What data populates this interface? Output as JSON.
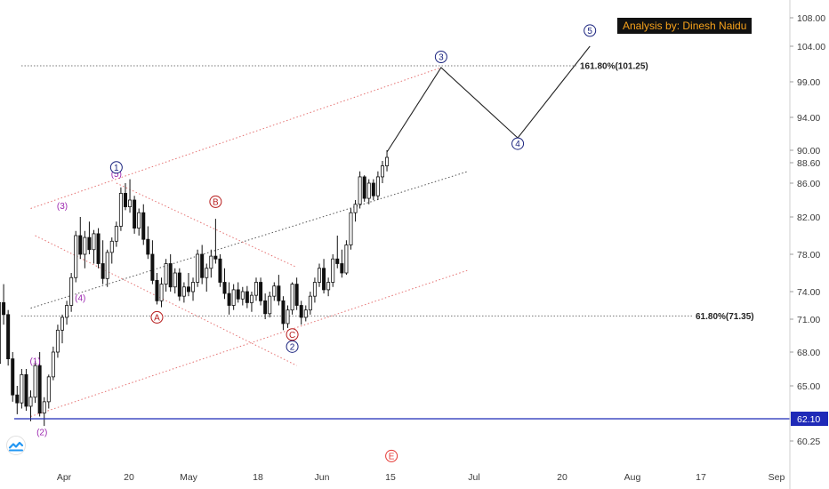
{
  "credit": "Analysis by: Dinesh Naidu",
  "chart_data": {
    "type": "candlestick",
    "x_ticks": [
      "Apr",
      "20",
      "May",
      "18",
      "Jun",
      "15",
      "Jul",
      "20",
      "Aug",
      "17",
      "Sep"
    ],
    "y_ticks": [
      "108.00",
      "104.00",
      "99.00",
      "94.00",
      "90.00",
      "88.60",
      "86.00",
      "82.00",
      "78.00",
      "74.00",
      "71.00",
      "68.00",
      "65.00",
      "62.10",
      "60.25"
    ],
    "current_price": "62.10",
    "fib_levels": [
      {
        "label": "161.80%(101.25)",
        "value": 101.25
      },
      {
        "label": "61.80%(71.35)",
        "value": 71.35
      }
    ],
    "wave_labels": [
      {
        "text": "(1)",
        "day": -6,
        "price": 67.2,
        "color": "#9c27b0",
        "circle": false
      },
      {
        "text": "(2)",
        "day": -4.5,
        "price": 61.0,
        "color": "#9c27b0",
        "circle": false
      },
      {
        "text": "(3)",
        "day": 0,
        "price": 83.3,
        "color": "#9c27b0",
        "circle": false
      },
      {
        "text": "(4)",
        "day": 4,
        "price": 73.3,
        "color": "#9c27b0",
        "circle": false
      },
      {
        "text": "(5)",
        "day": 12,
        "price": 87.2,
        "color": "#9c27b0",
        "circle": false
      },
      {
        "text": "1",
        "day": 12,
        "price": 88.0,
        "color": "#1a237e",
        "circle": true
      },
      {
        "text": "A",
        "day": 21,
        "price": 71.2,
        "color": "#b71c1c",
        "circle": true
      },
      {
        "text": "B",
        "day": 34,
        "price": 83.8,
        "color": "#b71c1c",
        "circle": true
      },
      {
        "text": "C",
        "day": 51,
        "price": 69.6,
        "color": "#b71c1c",
        "circle": true
      },
      {
        "text": "2",
        "day": 51,
        "price": 68.5,
        "color": "#1a237e",
        "circle": true
      },
      {
        "text": "3",
        "day": 84,
        "price": 102.5,
        "color": "#1a237e",
        "circle": true
      },
      {
        "text": "4",
        "day": 101,
        "price": 90.8,
        "color": "#1a237e",
        "circle": true
      },
      {
        "text": "5",
        "day": 117,
        "price": 106.2,
        "color": "#1a237e",
        "circle": true
      },
      {
        "text": "E",
        "day": 73,
        "price": 59.0,
        "color": "#e53935",
        "circle": true
      }
    ],
    "projection": [
      {
        "day": 72,
        "price": 89.8
      },
      {
        "day": 84,
        "price": 101.0
      },
      {
        "day": 101,
        "price": 91.5
      },
      {
        "day": 117,
        "price": 104.0
      }
    ],
    "channels": [
      {
        "style": "red-dotted",
        "points": [
          [
            -7,
            83.0
          ],
          [
            84,
            101.0
          ]
        ]
      },
      {
        "style": "red-dotted",
        "points": [
          [
            -7,
            62.3
          ],
          [
            90,
            76.3
          ]
        ]
      },
      {
        "style": "dark-dotted",
        "points": [
          [
            -7,
            72.2
          ],
          [
            90,
            87.5
          ]
        ]
      },
      {
        "style": "red-dotted",
        "points": [
          [
            -6,
            80.0
          ],
          [
            52,
            66.8
          ]
        ]
      },
      {
        "style": "red-dotted",
        "points": [
          [
            12,
            86.0
          ],
          [
            52,
            76.6
          ]
        ]
      }
    ],
    "series": [
      {
        "type": "ohlc",
        "columns": [
          "day",
          "open",
          "high",
          "low",
          "close"
        ],
        "values": [
          [
            -17,
            75.5,
            76.2,
            72.0,
            72.8
          ],
          [
            -16,
            72.8,
            73.5,
            69.5,
            70.2
          ],
          [
            -15,
            70.2,
            71.5,
            66.5,
            67.0
          ],
          [
            -14,
            67.0,
            73.5,
            66.0,
            72.8
          ],
          [
            -13,
            72.8,
            74.8,
            70.5,
            71.5
          ],
          [
            -12,
            71.5,
            72.0,
            66.8,
            67.4
          ],
          [
            -11,
            67.4,
            68.0,
            63.6,
            64.2
          ],
          [
            -10,
            64.2,
            65.0,
            62.5,
            63.5
          ],
          [
            -9,
            63.5,
            66.5,
            63.0,
            66.0
          ],
          [
            -8,
            66.0,
            66.5,
            62.8,
            63.2
          ],
          [
            -7,
            63.2,
            64.6,
            61.9,
            64.0
          ],
          [
            -6,
            64.0,
            67.2,
            63.5,
            66.8
          ],
          [
            -5,
            66.8,
            68.0,
            62.3,
            62.6
          ],
          [
            -4,
            62.6,
            64.0,
            61.5,
            63.6
          ],
          [
            -3,
            63.6,
            66.0,
            63.0,
            65.8
          ],
          [
            -2,
            65.8,
            68.5,
            65.5,
            68.0
          ],
          [
            -1,
            68.0,
            70.5,
            67.5,
            70.0
          ],
          [
            0,
            70.0,
            71.5,
            68.8,
            71.2
          ],
          [
            1,
            71.2,
            73.0,
            70.5,
            72.5
          ],
          [
            2,
            72.5,
            76.0,
            71.8,
            75.5
          ],
          [
            3,
            75.5,
            80.5,
            75.0,
            80.0
          ],
          [
            4,
            80.0,
            82.0,
            77.5,
            78.0
          ],
          [
            5,
            78.0,
            80.5,
            76.5,
            79.8
          ],
          [
            6,
            79.8,
            81.5,
            78.0,
            78.5
          ],
          [
            7,
            78.5,
            80.6,
            77.0,
            80.2
          ],
          [
            8,
            80.2,
            80.8,
            76.5,
            77.0
          ],
          [
            9,
            77.0,
            79.5,
            74.8,
            75.4
          ],
          [
            10,
            75.4,
            78.5,
            74.5,
            78.2
          ],
          [
            11,
            78.2,
            79.8,
            77.0,
            79.4
          ],
          [
            12,
            79.4,
            81.5,
            78.8,
            81.0
          ],
          [
            13,
            81.0,
            85.5,
            80.5,
            84.8
          ],
          [
            14,
            84.8,
            86.0,
            82.8,
            83.2
          ],
          [
            15,
            83.2,
            86.5,
            82.5,
            84.0
          ],
          [
            16,
            84.0,
            84.5,
            80.2,
            80.8
          ],
          [
            17,
            80.8,
            83.0,
            80.0,
            82.5
          ],
          [
            18,
            82.5,
            83.5,
            79.0,
            79.6
          ],
          [
            19,
            79.6,
            81.0,
            77.5,
            78.0
          ],
          [
            20,
            78.0,
            79.5,
            74.8,
            75.2
          ],
          [
            21,
            75.2,
            76.0,
            72.6,
            73.0
          ],
          [
            22,
            73.0,
            75.5,
            72.3,
            74.8
          ],
          [
            23,
            74.8,
            77.5,
            74.0,
            77.0
          ],
          [
            24,
            77.0,
            78.0,
            74.0,
            74.5
          ],
          [
            25,
            74.5,
            76.5,
            73.8,
            76.0
          ],
          [
            26,
            76.0,
            76.5,
            73.0,
            73.5
          ],
          [
            27,
            73.5,
            75.0,
            72.8,
            74.5
          ],
          [
            28,
            74.5,
            76.0,
            73.5,
            74.0
          ],
          [
            29,
            74.0,
            75.5,
            73.0,
            75.0
          ],
          [
            30,
            75.0,
            78.5,
            74.5,
            78.0
          ],
          [
            31,
            78.0,
            79.0,
            74.8,
            75.5
          ],
          [
            32,
            75.5,
            77.0,
            74.0,
            76.5
          ],
          [
            33,
            76.5,
            78.5,
            75.5,
            77.8
          ],
          [
            34,
            77.8,
            81.8,
            77.0,
            77.5
          ],
          [
            35,
            77.5,
            78.0,
            74.5,
            75.0
          ],
          [
            36,
            75.0,
            76.5,
            73.2,
            73.8
          ],
          [
            37,
            73.8,
            75.0,
            71.5,
            72.5
          ],
          [
            38,
            72.5,
            74.8,
            72.0,
            74.2
          ],
          [
            39,
            74.2,
            75.0,
            72.8,
            73.2
          ],
          [
            40,
            73.2,
            74.5,
            72.5,
            74.0
          ],
          [
            41,
            74.0,
            74.6,
            72.2,
            72.8
          ],
          [
            42,
            72.8,
            74.0,
            71.8,
            73.6
          ],
          [
            43,
            73.6,
            75.5,
            73.0,
            75.0
          ],
          [
            44,
            75.0,
            75.5,
            72.5,
            73.0
          ],
          [
            45,
            73.0,
            73.8,
            71.0,
            71.6
          ],
          [
            46,
            71.6,
            74.0,
            71.2,
            73.5
          ],
          [
            47,
            73.5,
            75.0,
            73.0,
            74.6
          ],
          [
            48,
            74.6,
            75.8,
            72.5,
            73.0
          ],
          [
            49,
            73.0,
            73.5,
            70.0,
            70.6
          ],
          [
            50,
            70.6,
            72.5,
            70.2,
            72.0
          ],
          [
            51,
            72.0,
            75.0,
            71.5,
            74.8
          ],
          [
            52,
            74.8,
            75.5,
            72.0,
            72.5
          ],
          [
            53,
            72.5,
            73.0,
            70.5,
            71.2
          ],
          [
            54,
            71.2,
            72.5,
            70.8,
            72.0
          ],
          [
            55,
            72.0,
            74.0,
            71.5,
            73.5
          ],
          [
            56,
            73.5,
            75.5,
            72.8,
            75.0
          ],
          [
            57,
            75.0,
            77.0,
            74.5,
            76.5
          ],
          [
            58,
            76.5,
            77.5,
            73.8,
            74.2
          ],
          [
            59,
            74.2,
            75.5,
            73.5,
            75.0
          ],
          [
            60,
            75.0,
            78.0,
            74.5,
            77.5
          ],
          [
            61,
            77.5,
            80.0,
            76.5,
            77.0
          ],
          [
            62,
            77.0,
            78.5,
            75.5,
            76.0
          ],
          [
            63,
            76.0,
            79.5,
            75.8,
            79.0
          ],
          [
            64,
            79.0,
            83.0,
            78.5,
            82.5
          ],
          [
            65,
            82.5,
            84.0,
            81.5,
            83.5
          ],
          [
            66,
            83.5,
            87.5,
            83.0,
            86.8
          ],
          [
            67,
            86.8,
            87.0,
            83.8,
            84.2
          ],
          [
            68,
            84.2,
            86.5,
            83.5,
            86.0
          ],
          [
            69,
            86.0,
            86.5,
            84.0,
            84.5
          ],
          [
            70,
            84.5,
            87.5,
            84.0,
            86.8
          ],
          [
            71,
            86.8,
            88.8,
            86.0,
            88.2
          ],
          [
            72,
            88.2,
            90.0,
            87.5,
            89.2
          ]
        ]
      }
    ]
  }
}
